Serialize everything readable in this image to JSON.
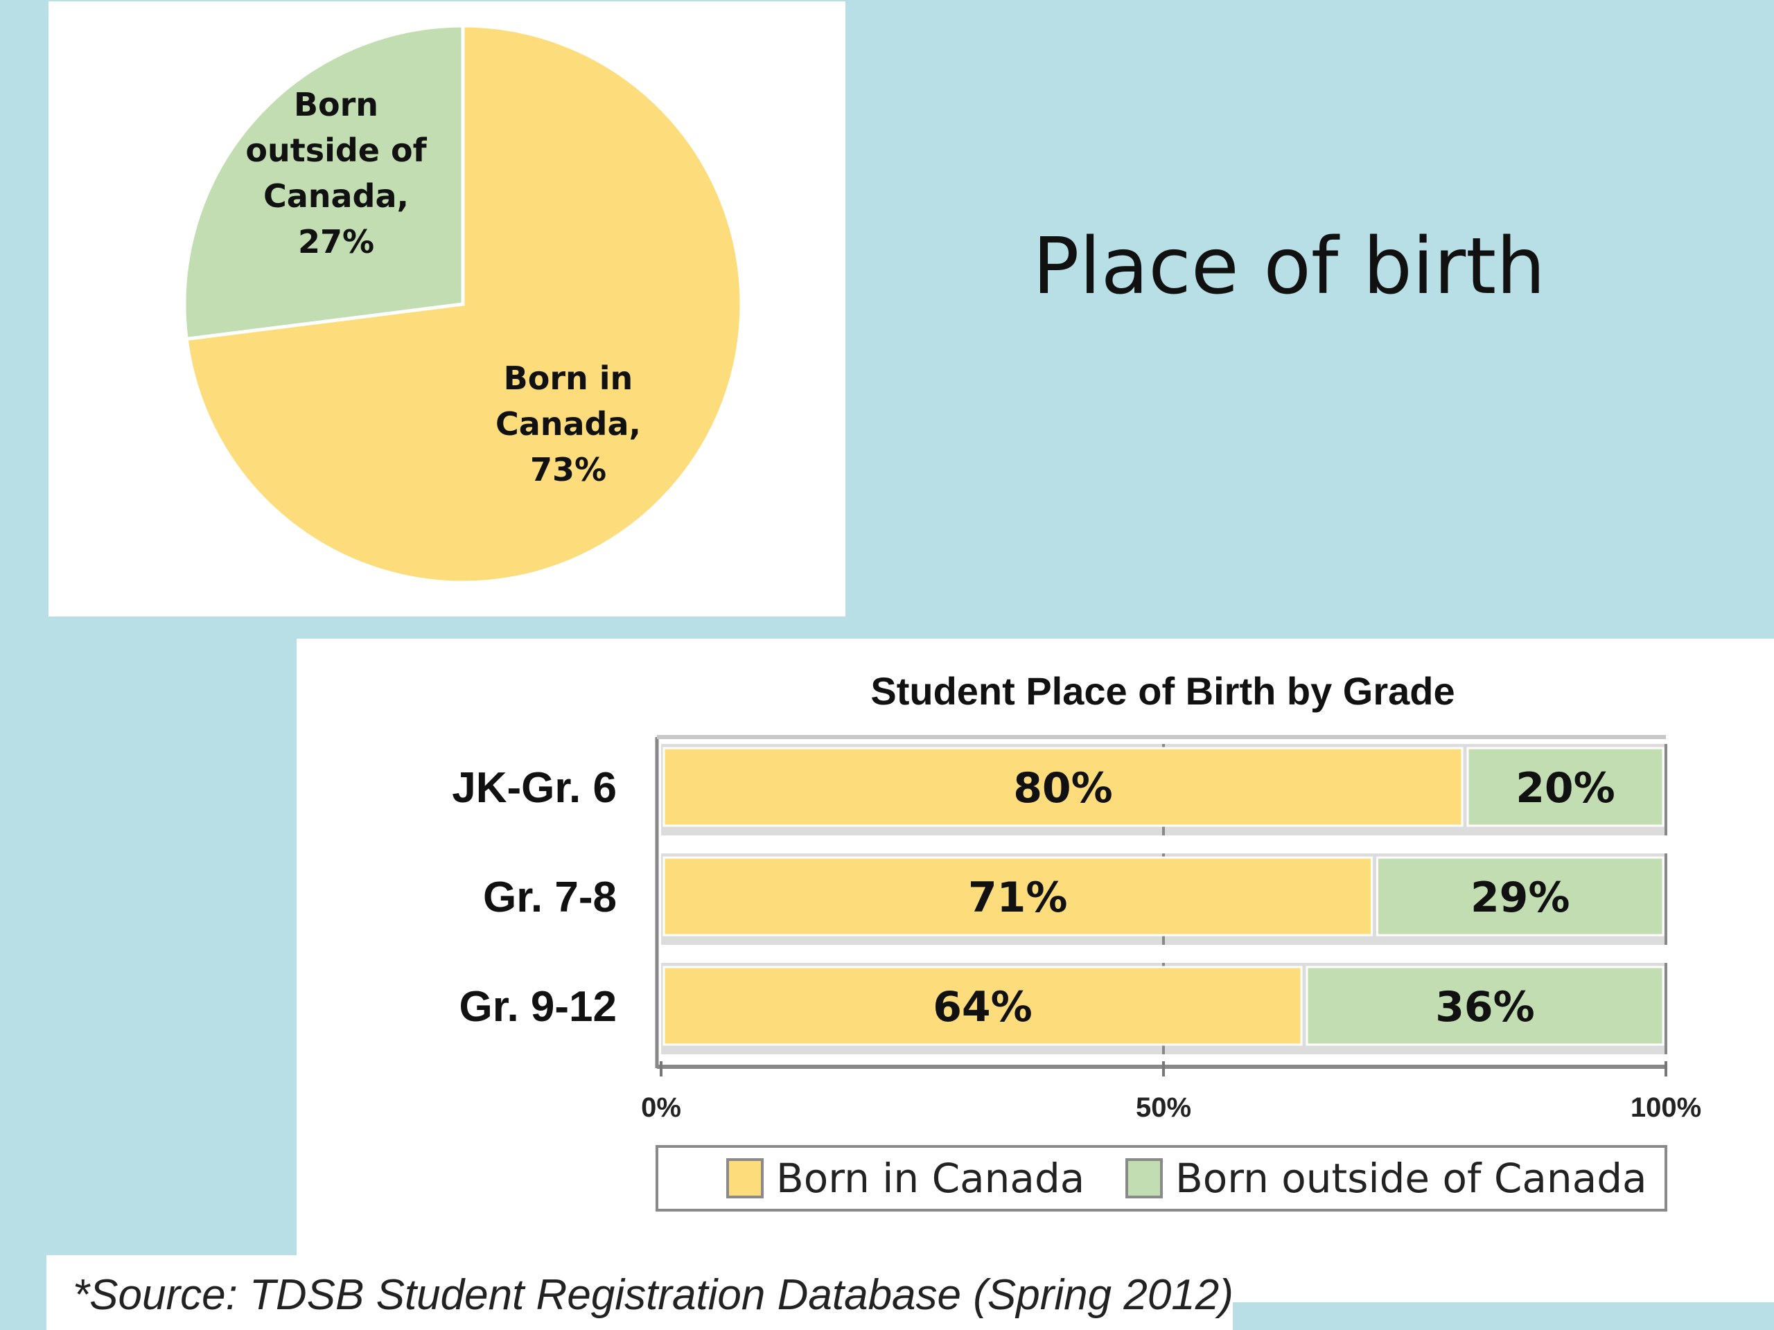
{
  "slide": {
    "title": "Place of birth",
    "source": "*Source: TDSB Student Registration Database (Spring 2012)"
  },
  "colors": {
    "born_in_canada": "#fddc7b",
    "born_outside_canada": "#c2ddb2",
    "background": "#b8dfe6"
  },
  "chart_data": [
    {
      "type": "pie",
      "title": "",
      "slices": [
        {
          "label_lines": [
            "Born in",
            "Canada,",
            "73%"
          ],
          "value": 73,
          "color_key": "born_in_canada"
        },
        {
          "label_lines": [
            "Born",
            "outside of",
            "Canada,",
            "27%"
          ],
          "value": 27,
          "color_key": "born_outside_canada"
        }
      ]
    },
    {
      "type": "bar",
      "orientation": "horizontal",
      "stacked": true,
      "title": "Student Place of Birth by Grade",
      "categories": [
        "JK-Gr. 6",
        "Gr. 7-8",
        "Gr. 9-12"
      ],
      "series": [
        {
          "name": "Born in Canada",
          "values": [
            80,
            71,
            64
          ],
          "labels": [
            "80%",
            "71%",
            "64%"
          ],
          "color_key": "born_in_canada"
        },
        {
          "name": "Born outside of Canada",
          "values": [
            20,
            29,
            36
          ],
          "labels": [
            "20%",
            "29%",
            "36%"
          ],
          "color_key": "born_outside_canada"
        }
      ],
      "xlim": [
        0,
        100
      ],
      "xticks": [
        "0%",
        "50%",
        "100%"
      ],
      "legend": "bottom",
      "grid": false
    }
  ]
}
